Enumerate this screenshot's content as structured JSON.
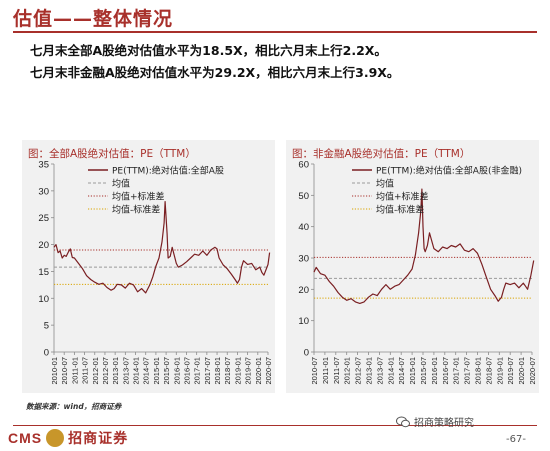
{
  "header": {
    "title": "估值——整体情况",
    "summary_1": "七月末全部A股绝对估值水平为18.5X，相比六月末上行2.2X。",
    "summary_2": "七月末非金融A股绝对估值水平为29.2X，相比六月末上行3.9X。"
  },
  "colors": {
    "accent": "#a8302b",
    "pe_line": "#7a1f22",
    "mean_line": "#9a9a9a",
    "plus_sd_line": "#a8302b",
    "minus_sd_line": "#d9a400"
  },
  "chart_data": [
    {
      "type": "line",
      "title": "图：全部A股绝对估值：PE（TTM）",
      "ylim": [
        0,
        35
      ],
      "yticks": [
        0,
        5,
        10,
        15,
        20,
        25,
        30,
        35
      ],
      "x_tick_labels": [
        "2010-01",
        "2010-07",
        "2011-01",
        "2011-07",
        "2012-01",
        "2012-07",
        "2013-01",
        "2013-07",
        "2014-01",
        "2014-07",
        "2015-01",
        "2015-07",
        "2016-01",
        "2016-07",
        "2017-01",
        "2017-07",
        "2018-01",
        "2018-07",
        "2019-01",
        "2019-07",
        "2020-01",
        "2020-07"
      ],
      "grid": false,
      "legend": [
        "PE(TTM):绝对估值:全部A股",
        "均值",
        "均值+标准差",
        "均值-标准差"
      ],
      "series": [
        {
          "name": "PE(TTM):绝对估值:全部A股",
          "x": [
            2010.0,
            2010.1,
            2010.2,
            2010.3,
            2010.4,
            2010.5,
            2010.6,
            2010.7,
            2010.8,
            2010.9,
            2011.0,
            2011.2,
            2011.4,
            2011.6,
            2011.8,
            2012.0,
            2012.2,
            2012.4,
            2012.6,
            2012.8,
            2012.95,
            2013.1,
            2013.3,
            2013.5,
            2013.7,
            2013.9,
            2014.1,
            2014.3,
            2014.5,
            2014.7,
            2014.85,
            2015.0,
            2015.15,
            2015.3,
            2015.4,
            2015.45,
            2015.5,
            2015.55,
            2015.6,
            2015.7,
            2015.8,
            2016.0,
            2016.1,
            2016.3,
            2016.5,
            2016.7,
            2016.9,
            2017.1,
            2017.3,
            2017.5,
            2017.7,
            2017.9,
            2018.0,
            2018.1,
            2018.3,
            2018.5,
            2018.7,
            2018.9,
            2019.0,
            2019.1,
            2019.2,
            2019.3,
            2019.5,
            2019.7,
            2019.9,
            2020.1,
            2020.2,
            2020.3,
            2020.45,
            2020.5,
            2020.58
          ],
          "y": [
            19.5,
            20.0,
            18.5,
            18.8,
            17.5,
            18.0,
            17.8,
            18.6,
            19.2,
            17.6,
            17.5,
            16.5,
            15.5,
            14.2,
            13.5,
            13.0,
            12.6,
            12.8,
            12.0,
            11.5,
            11.8,
            12.6,
            12.5,
            11.9,
            12.8,
            12.5,
            11.2,
            11.8,
            11.0,
            12.5,
            14.0,
            16.0,
            17.5,
            20.5,
            24.0,
            28.0,
            25.0,
            22.0,
            17.5,
            17.8,
            19.5,
            16.5,
            15.8,
            16.2,
            16.8,
            17.5,
            18.2,
            18.0,
            18.8,
            18.0,
            19.0,
            19.5,
            19.2,
            17.5,
            16.2,
            15.5,
            14.5,
            13.4,
            12.8,
            13.5,
            15.8,
            17.0,
            16.3,
            16.5,
            15.3,
            15.8,
            14.8,
            14.3,
            15.8,
            16.3,
            18.5
          ]
        },
        {
          "name": "均值",
          "values": [
            15.8
          ]
        },
        {
          "name": "均值+标准差",
          "values": [
            19.0
          ]
        },
        {
          "name": "均值-标准差",
          "values": [
            12.6
          ]
        }
      ]
    },
    {
      "type": "line",
      "title": "图：非金融A股绝对估值：PE（TTM）",
      "ylim": [
        0,
        60
      ],
      "yticks": [
        0,
        10,
        20,
        30,
        40,
        50,
        60
      ],
      "x_tick_labels": [
        "2010-07",
        "2011-01",
        "2011-07",
        "2012-01",
        "2012-07",
        "2013-01",
        "2013-07",
        "2014-01",
        "2014-07",
        "2015-01",
        "2015-07",
        "2016-01",
        "2016-07",
        "2017-01",
        "2017-07",
        "2018-01",
        "2018-07",
        "2019-01",
        "2019-07",
        "2020-01",
        "2020-07"
      ],
      "grid": false,
      "legend": [
        "PE(TTM):绝对估值:全部A股(非金融)",
        "均值",
        "均值+标准差",
        "均值-标准差"
      ],
      "series": [
        {
          "name": "PE(TTM):绝对估值:全部A股(非金融)",
          "x": [
            2010.5,
            2010.6,
            2010.8,
            2011.0,
            2011.2,
            2011.4,
            2011.6,
            2011.8,
            2012.0,
            2012.2,
            2012.4,
            2012.6,
            2012.8,
            2013.0,
            2013.2,
            2013.4,
            2013.6,
            2013.8,
            2014.0,
            2014.2,
            2014.4,
            2014.6,
            2014.8,
            2015.0,
            2015.15,
            2015.3,
            2015.4,
            2015.45,
            2015.5,
            2015.55,
            2015.6,
            2015.7,
            2015.8,
            2016.0,
            2016.2,
            2016.4,
            2016.6,
            2016.8,
            2017.0,
            2017.2,
            2017.4,
            2017.6,
            2017.8,
            2018.0,
            2018.2,
            2018.4,
            2018.6,
            2018.8,
            2018.95,
            2019.1,
            2019.2,
            2019.3,
            2019.5,
            2019.7,
            2019.9,
            2020.1,
            2020.2,
            2020.3,
            2020.45,
            2020.58
          ],
          "y": [
            25.5,
            27.0,
            25.0,
            24.5,
            22.5,
            21.0,
            19.0,
            17.5,
            16.5,
            17.0,
            16.0,
            15.5,
            16.0,
            17.5,
            18.5,
            18.0,
            20.0,
            21.5,
            20.0,
            21.0,
            21.5,
            23.0,
            24.5,
            26.5,
            31.0,
            38.0,
            45.0,
            52.0,
            40.0,
            33.0,
            32.0,
            34.0,
            38.0,
            33.0,
            32.0,
            33.5,
            33.0,
            34.0,
            33.5,
            34.5,
            32.5,
            32.0,
            33.0,
            31.5,
            28.0,
            24.0,
            20.0,
            18.0,
            16.2,
            17.5,
            20.0,
            22.0,
            21.5,
            22.0,
            20.5,
            22.0,
            21.0,
            20.0,
            24.5,
            29.2
          ]
        },
        {
          "name": "均值",
          "values": [
            23.5
          ]
        },
        {
          "name": "均值+标准差",
          "values": [
            30.2
          ]
        },
        {
          "name": "均值-标准差",
          "values": [
            17.2
          ]
        }
      ]
    }
  ],
  "footer": {
    "source": "数据来源：wind，招商证券",
    "logo_text": "CMS",
    "logo_badge": "",
    "company": "招商证券",
    "wechat": "招商策略研究",
    "page": "-67-"
  }
}
